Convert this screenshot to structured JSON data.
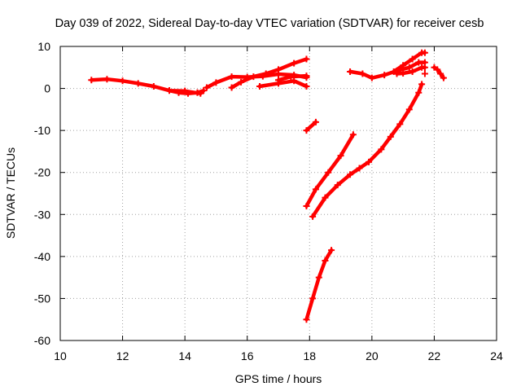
{
  "chart_data": {
    "type": "scatter",
    "title": "Day 039 of 2022, Sidereal Day-to-day VTEC variation (SDTVAR) for receiver cesb",
    "xlabel": "GPS time / hours",
    "ylabel": "SDTVAR / TECUs",
    "xlim": [
      10,
      24
    ],
    "ylim": [
      -60,
      10
    ],
    "xticks": [
      "10",
      "12",
      "14",
      "16",
      "18",
      "20",
      "22",
      "24"
    ],
    "yticks": [
      "10",
      "0",
      "-10",
      "-20",
      "-30",
      "-40",
      "-50",
      "-60"
    ],
    "grid": true,
    "marker": "plus",
    "colors": {
      "series": "#ff0000",
      "grid": "#a0a0a0",
      "axis": "#000000"
    },
    "series": [
      {
        "values": [
          [
            11.0,
            2.0
          ],
          [
            11.5,
            2.2
          ],
          [
            12.0,
            1.8
          ],
          [
            12.5,
            1.2
          ],
          [
            13.0,
            0.5
          ],
          [
            13.5,
            -0.5
          ],
          [
            14.0,
            -0.6
          ],
          [
            14.5,
            -1.2
          ]
        ]
      },
      {
        "values": [
          [
            13.5,
            -0.5
          ],
          [
            13.8,
            -1.0
          ],
          [
            14.1,
            -1.2
          ],
          [
            14.4,
            -1.0
          ],
          [
            14.6,
            -0.5
          ]
        ]
      },
      {
        "values": [
          [
            14.7,
            0.2
          ],
          [
            15.0,
            1.4
          ],
          [
            15.5,
            2.8
          ],
          [
            16.0,
            2.7
          ],
          [
            16.5,
            2.9
          ],
          [
            17.0,
            3.4
          ],
          [
            17.5,
            3.2
          ],
          [
            17.9,
            2.6
          ]
        ]
      },
      {
        "values": [
          [
            15.5,
            0.2
          ],
          [
            15.8,
            1.5
          ],
          [
            16.2,
            2.8
          ],
          [
            16.6,
            3.5
          ],
          [
            17.0,
            4.5
          ],
          [
            17.5,
            6.0
          ],
          [
            17.9,
            7.0
          ]
        ]
      },
      {
        "values": [
          [
            16.4,
            0.5
          ],
          [
            17.0,
            1.2
          ],
          [
            17.5,
            1.8
          ],
          [
            17.9,
            0.5
          ]
        ]
      },
      {
        "values": [
          [
            17.0,
            2.0
          ],
          [
            17.4,
            2.8
          ],
          [
            17.9,
            3.0
          ]
        ]
      },
      {
        "values": [
          [
            17.9,
            -10.0
          ],
          [
            18.2,
            -8.0
          ]
        ]
      },
      {
        "values": [
          [
            17.9,
            -28.0
          ],
          [
            18.2,
            -24.0
          ],
          [
            18.6,
            -20.0
          ],
          [
            19.0,
            -16.0
          ],
          [
            19.4,
            -11.0
          ]
        ]
      },
      {
        "values": [
          [
            18.1,
            -30.5
          ],
          [
            18.5,
            -26.0
          ],
          [
            18.9,
            -23.0
          ],
          [
            19.3,
            -20.5
          ],
          [
            19.6,
            -19.0
          ],
          [
            19.9,
            -17.5
          ],
          [
            20.3,
            -14.5
          ],
          [
            20.6,
            -11.5
          ],
          [
            20.9,
            -8.5
          ],
          [
            21.2,
            -5.0
          ],
          [
            21.5,
            -1.0
          ],
          [
            21.6,
            1.0
          ]
        ]
      },
      {
        "values": [
          [
            17.9,
            -55.0
          ],
          [
            18.1,
            -50.0
          ],
          [
            18.3,
            -45.0
          ],
          [
            18.5,
            -41.0
          ],
          [
            18.7,
            -38.5
          ]
        ]
      },
      {
        "values": [
          [
            19.3,
            4.0
          ],
          [
            19.7,
            3.5
          ],
          [
            20.0,
            2.5
          ],
          [
            20.4,
            3.2
          ],
          [
            20.8,
            4.2
          ],
          [
            21.2,
            5.0
          ],
          [
            21.5,
            6.2
          ],
          [
            21.7,
            6.2
          ]
        ]
      },
      {
        "values": [
          [
            20.7,
            4.0
          ],
          [
            21.0,
            5.5
          ],
          [
            21.3,
            7.0
          ],
          [
            21.6,
            8.5
          ],
          [
            21.7,
            8.5
          ]
        ]
      },
      {
        "values": [
          [
            20.8,
            3.5
          ],
          [
            21.0,
            3.6
          ],
          [
            21.3,
            4.0
          ],
          [
            21.6,
            5.0
          ],
          [
            21.7,
            5.0
          ]
        ]
      },
      {
        "values": [
          [
            21.7,
            3.5
          ]
        ]
      },
      {
        "values": [
          [
            22.0,
            5.0
          ],
          [
            22.1,
            4.5
          ],
          [
            22.2,
            3.5
          ],
          [
            22.3,
            2.5
          ]
        ]
      }
    ]
  }
}
